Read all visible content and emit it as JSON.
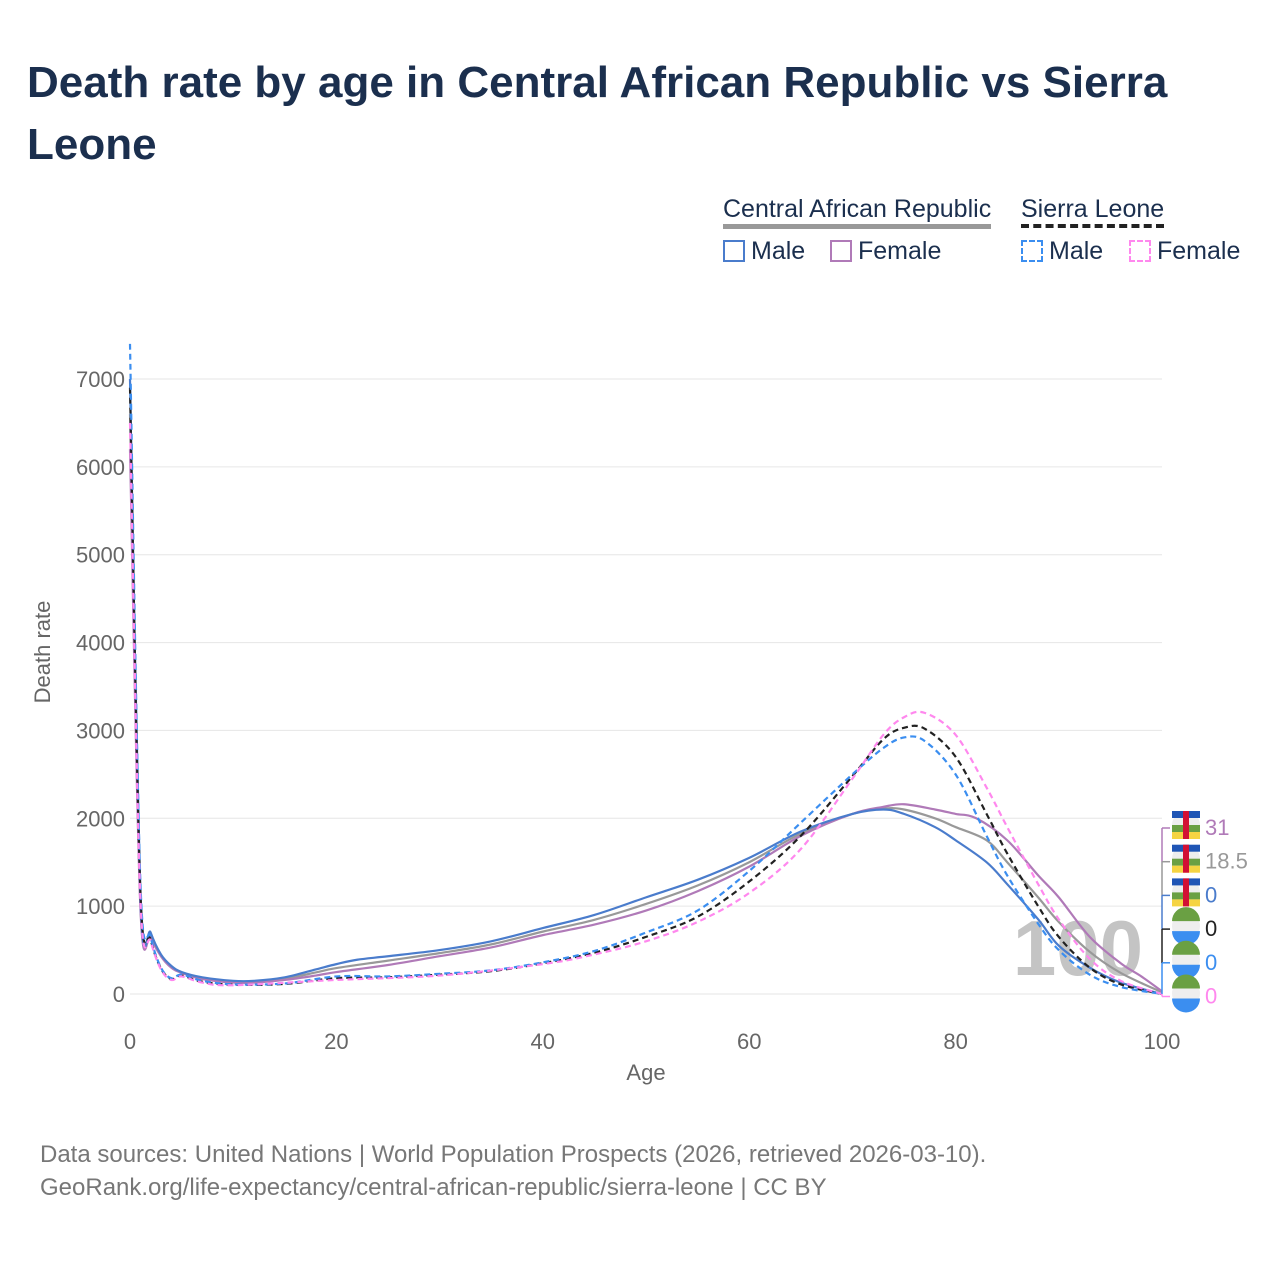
{
  "title": "Death rate by age in Central African Republic vs Sierra Leone",
  "legend": {
    "group1": "Central African Republic",
    "group2": "Sierra Leone",
    "male": "Male",
    "female": "Female"
  },
  "source": {
    "line1": "Data sources: United Nations | World Population Prospects (2026, retrieved 2026-03-10).",
    "line2": "GeoRank.org/life-expectancy/central-african-republic/sierra-leone | CC BY"
  },
  "hover": {
    "age": "100",
    "labels": [
      "31",
      "18.5",
      "0",
      "0",
      "0",
      "0"
    ]
  },
  "chart_data": {
    "type": "line",
    "xlabel": "Age",
    "ylabel": "Death rate",
    "xlim": [
      0,
      100
    ],
    "ylim": [
      0,
      7000
    ],
    "xticks": [
      "0",
      "20",
      "40",
      "60",
      "80",
      "100"
    ],
    "yticks": [
      "0",
      "1000",
      "2000",
      "3000",
      "4000",
      "5000",
      "6000",
      "7000"
    ],
    "series": [
      {
        "name": "Central African Republic Total",
        "color": "#999999",
        "dash": false,
        "x": [
          0,
          1,
          2,
          3,
          4,
          5,
          7,
          10,
          12,
          15,
          18,
          20,
          25,
          30,
          35,
          40,
          45,
          50,
          55,
          60,
          65,
          70,
          73,
          75,
          78,
          80,
          83,
          85,
          88,
          90,
          93,
          96,
          100
        ],
        "y": [
          6600,
          1050,
          680,
          440,
          310,
          245,
          180,
          140,
          140,
          175,
          245,
          295,
          380,
          465,
          565,
          710,
          845,
          1025,
          1235,
          1500,
          1825,
          2050,
          2110,
          2100,
          2000,
          1900,
          1750,
          1500,
          1100,
          820,
          480,
          240,
          18.5
        ]
      },
      {
        "name": "Central African Republic Female",
        "color": "#b07ab8",
        "dash": false,
        "x": [
          0,
          1,
          2,
          3,
          4,
          5,
          7,
          10,
          12,
          15,
          18,
          20,
          25,
          30,
          35,
          40,
          45,
          50,
          55,
          60,
          65,
          70,
          73,
          75,
          78,
          80,
          82,
          85,
          88,
          90,
          93,
          96,
          98,
          100
        ],
        "y": [
          6200,
          1000,
          650,
          430,
          300,
          240,
          170,
          130,
          130,
          160,
          210,
          250,
          330,
          430,
          530,
          670,
          790,
          950,
          1170,
          1450,
          1800,
          2050,
          2130,
          2160,
          2100,
          2050,
          2000,
          1750,
          1350,
          1100,
          650,
          350,
          200,
          31
        ]
      },
      {
        "name": "Central African Republic Male",
        "color": "#4a7ccc",
        "dash": false,
        "x": [
          0,
          1,
          2,
          3,
          4,
          5,
          7,
          10,
          12,
          15,
          18,
          20,
          22,
          25,
          30,
          35,
          40,
          45,
          50,
          55,
          60,
          65,
          70,
          73,
          75,
          78,
          80,
          83,
          85,
          88,
          90,
          93,
          96,
          100
        ],
        "y": [
          7000,
          1100,
          700,
          450,
          320,
          250,
          190,
          150,
          150,
          190,
          280,
          340,
          390,
          430,
          500,
          600,
          750,
          900,
          1100,
          1300,
          1550,
          1850,
          2050,
          2100,
          2050,
          1900,
          1750,
          1500,
          1250,
          850,
          550,
          300,
          130,
          0
        ]
      },
      {
        "name": "Sierra Leone Total",
        "color": "#222222",
        "dash": true,
        "x": [
          0,
          1,
          2,
          3,
          4,
          5,
          7,
          10,
          15,
          20,
          25,
          30,
          35,
          40,
          45,
          50,
          55,
          60,
          65,
          70,
          73,
          75,
          77,
          80,
          83,
          85,
          88,
          90,
          93,
          96,
          100
        ],
        "y": [
          6900,
          1200,
          620,
          290,
          170,
          210,
          140,
          105,
          115,
          180,
          190,
          220,
          260,
          350,
          470,
          650,
          880,
          1280,
          1800,
          2480,
          2900,
          3030,
          3020,
          2700,
          2050,
          1600,
          1000,
          650,
          300,
          110,
          0
        ]
      },
      {
        "name": "Sierra Leone Male",
        "color": "#3b8ef0",
        "dash": true,
        "x": [
          0,
          1,
          2,
          3,
          4,
          5,
          7,
          10,
          15,
          20,
          25,
          30,
          35,
          40,
          45,
          50,
          55,
          60,
          65,
          70,
          73,
          75,
          77,
          80,
          83,
          85,
          88,
          90,
          93,
          96,
          100
        ],
        "y": [
          7400,
          1300,
          650,
          300,
          180,
          220,
          150,
          110,
          120,
          200,
          200,
          230,
          270,
          360,
          490,
          700,
          950,
          1400,
          1950,
          2500,
          2800,
          2920,
          2880,
          2500,
          1800,
          1350,
          800,
          500,
          220,
          80,
          0
        ]
      },
      {
        "name": "Sierra Leone Female",
        "color": "#ff88ee",
        "dash": true,
        "x": [
          0,
          1,
          2,
          3,
          4,
          5,
          7,
          10,
          20,
          30,
          40,
          45,
          50,
          55,
          60,
          65,
          70,
          73,
          75,
          77,
          80,
          83,
          85,
          88,
          90,
          93,
          96,
          100
        ],
        "y": [
          6500,
          1100,
          600,
          280,
          160,
          200,
          130,
          100,
          160,
          210,
          340,
          450,
          600,
          820,
          1150,
          1650,
          2450,
          2950,
          3150,
          3200,
          2950,
          2350,
          1900,
          1250,
          850,
          400,
          150,
          0
        ]
      }
    ]
  }
}
